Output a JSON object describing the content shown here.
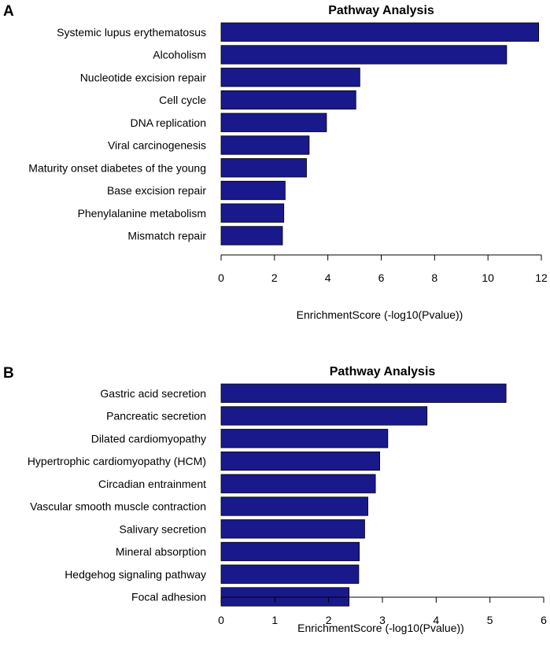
{
  "chart_data": [
    {
      "panel": "A",
      "type": "bar",
      "orientation": "horizontal",
      "title": "Pathway Analysis",
      "xlabel": "EnrichmentScore (-log10(Pvalue))",
      "ylabel": "",
      "xlim": [
        0,
        12
      ],
      "xticks": [
        0,
        2,
        4,
        6,
        8,
        10,
        12
      ],
      "bar_color": "#19198c",
      "categories": [
        "Systemic lupus erythematosus",
        "Alcoholism",
        "Nucleotide excision repair",
        "Cell cycle",
        "DNA replication",
        "Viral carcinogenesis",
        "Maturity onset diabetes of the young",
        "Base excision repair",
        "Phenylalanine metabolism",
        "Mismatch repair"
      ],
      "values": [
        11.9,
        10.7,
        5.2,
        5.05,
        3.95,
        3.3,
        3.2,
        2.4,
        2.35,
        2.3
      ]
    },
    {
      "panel": "B",
      "type": "bar",
      "orientation": "horizontal",
      "title": "Pathway Analysis",
      "xlabel": "EnrichmentScore (-log10(Pvalue))",
      "ylabel": "",
      "xlim": [
        0,
        6
      ],
      "xticks": [
        0,
        1,
        2,
        3,
        4,
        5,
        6
      ],
      "bar_color": "#19198c",
      "categories": [
        "Gastric acid secretion",
        "Pancreatic secretion",
        "Dilated cardiomyopathy",
        "Hypertrophic cardiomyopathy (HCM)",
        "Circadian entrainment",
        "Vascular smooth muscle contraction",
        "Salivary secretion",
        "Mineral absorption",
        "Hedgehog signaling pathway",
        "Focal adhesion"
      ],
      "values": [
        5.3,
        3.83,
        3.1,
        2.95,
        2.87,
        2.73,
        2.67,
        2.57,
        2.56,
        2.38
      ]
    }
  ]
}
